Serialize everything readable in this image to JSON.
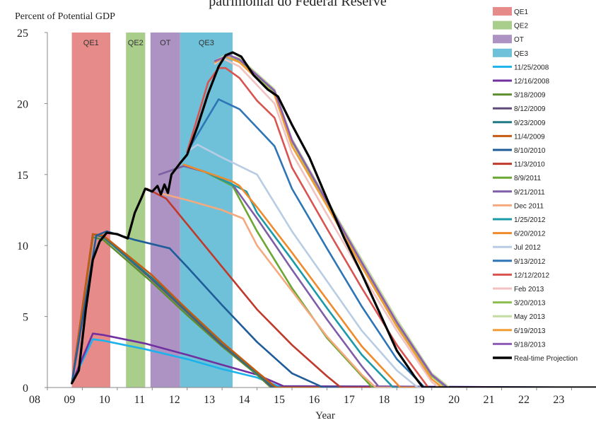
{
  "header": {
    "title": "patrimonial do Federal Reserve"
  },
  "chart_data": {
    "type": "line",
    "title": "patrimonial do Federal Reserve",
    "ylabel": "Percent of Potential GDP",
    "xlabel": "Year",
    "xlim": [
      2008,
      2023.7
    ],
    "ylim": [
      0,
      25
    ],
    "xticks": [
      2008,
      2009,
      2010,
      2011,
      2012,
      2013,
      2014,
      2015,
      2016,
      2017,
      2018,
      2019,
      2020,
      2021,
      2022,
      2023
    ],
    "xtick_labels": [
      "08",
      "09",
      "10",
      "11",
      "12",
      "13",
      "14",
      "15",
      "16",
      "17",
      "18",
      "19",
      "20",
      "21",
      "22",
      "23"
    ],
    "yticks": [
      0,
      5,
      10,
      15,
      20,
      25
    ],
    "ytick_labels": [
      "0",
      "5",
      "10",
      "15",
      "20",
      "25"
    ],
    "grid": false,
    "legend_position": "right",
    "bands": [
      {
        "name": "QE1",
        "x0": 2008.7,
        "x1": 2009.8,
        "color": "#e68a8a"
      },
      {
        "name": "QE2",
        "x0": 2010.25,
        "x1": 2010.8,
        "color": "#a9cd8a"
      },
      {
        "name": "OT",
        "x0": 2010.95,
        "x1": 2011.8,
        "color": "#ad93c4"
      },
      {
        "name": "QE3",
        "x0": 2011.8,
        "x1": 2013.3,
        "color": "#6ec1d8"
      }
    ],
    "series": [
      {
        "name": "11/25/2008",
        "color": "#1cb2ec",
        "points": [
          [
            2008.7,
            0.3
          ],
          [
            2009.3,
            3.4
          ],
          [
            2009.6,
            3.3
          ],
          [
            2010.8,
            2.7
          ],
          [
            2012,
            2.0
          ],
          [
            2013,
            1.3
          ],
          [
            2014,
            0.7
          ],
          [
            2014.6,
            0.1
          ],
          [
            2023.7,
            0
          ]
        ]
      },
      {
        "name": "12/16/2008",
        "color": "#7030a0",
        "points": [
          [
            2008.7,
            0.3
          ],
          [
            2009.3,
            3.8
          ],
          [
            2009.6,
            3.7
          ],
          [
            2010.8,
            3.1
          ],
          [
            2012,
            2.3
          ],
          [
            2013,
            1.6
          ],
          [
            2014,
            0.9
          ],
          [
            2014.75,
            0.1
          ],
          [
            2023.7,
            0
          ]
        ]
      },
      {
        "name": "3/18/2009",
        "color": "#5e8f2f",
        "points": [
          [
            2008.7,
            0.3
          ],
          [
            2009.3,
            10.6
          ],
          [
            2009.6,
            10.4
          ],
          [
            2011,
            7.4
          ],
          [
            2012,
            5.1
          ],
          [
            2013,
            2.9
          ],
          [
            2014,
            0.9
          ],
          [
            2014.4,
            0
          ],
          [
            2023.7,
            0
          ]
        ]
      },
      {
        "name": "8/12/2009",
        "color": "#604a7b",
        "points": [
          [
            2008.7,
            0.3
          ],
          [
            2009.3,
            10.8
          ],
          [
            2009.6,
            10.6
          ],
          [
            2011,
            7.6
          ],
          [
            2012,
            5.3
          ],
          [
            2013,
            3.0
          ],
          [
            2014,
            1.0
          ],
          [
            2014.45,
            0
          ],
          [
            2023.7,
            0
          ]
        ]
      },
      {
        "name": "9/23/2009",
        "color": "#1f7a86",
        "points": [
          [
            2008.7,
            0.3
          ],
          [
            2009.3,
            10.8
          ],
          [
            2009.6,
            10.6
          ],
          [
            2011,
            7.7
          ],
          [
            2012,
            5.4
          ],
          [
            2013,
            3.1
          ],
          [
            2014,
            1.0
          ],
          [
            2014.5,
            0
          ],
          [
            2023.7,
            0
          ]
        ]
      },
      {
        "name": "11/4/2009",
        "color": "#c55a11",
        "points": [
          [
            2008.7,
            0.3
          ],
          [
            2009.3,
            10.8
          ],
          [
            2009.6,
            10.7
          ],
          [
            2011,
            7.9
          ],
          [
            2012,
            5.5
          ],
          [
            2013,
            3.2
          ],
          [
            2014,
            1.1
          ],
          [
            2014.55,
            0
          ],
          [
            2023.7,
            0
          ]
        ]
      },
      {
        "name": "8/10/2010",
        "color": "#1f5d9a",
        "points": [
          [
            2008.7,
            0.3
          ],
          [
            2009.4,
            10.7
          ],
          [
            2009.7,
            11.0
          ],
          [
            2010.5,
            10.4
          ],
          [
            2011.5,
            9.8
          ],
          [
            2012,
            8.5
          ],
          [
            2013,
            5.8
          ],
          [
            2014,
            3.2
          ],
          [
            2015,
            1.0
          ],
          [
            2015.9,
            0
          ],
          [
            2023.7,
            0
          ]
        ]
      },
      {
        "name": "11/3/2010",
        "color": "#c0392b",
        "points": [
          [
            2010.85,
            14.0
          ],
          [
            2011.4,
            13.3
          ],
          [
            2012,
            11.5
          ],
          [
            2013,
            8.5
          ],
          [
            2014,
            5.5
          ],
          [
            2015,
            3.0
          ],
          [
            2016,
            0.8
          ],
          [
            2016.4,
            0
          ],
          [
            2023.7,
            0
          ]
        ]
      },
      {
        "name": "8/9/2011",
        "color": "#6aa832",
        "points": [
          [
            2011.2,
            15.0
          ],
          [
            2011.9,
            15.6
          ],
          [
            2012.5,
            15.2
          ],
          [
            2013.3,
            14.2
          ],
          [
            2014,
            11.0
          ],
          [
            2015,
            7.0
          ],
          [
            2016,
            3.5
          ],
          [
            2017,
            0.8
          ],
          [
            2017.3,
            0
          ],
          [
            2023.7,
            0
          ]
        ]
      },
      {
        "name": "9/21/2011",
        "color": "#7f5da8",
        "points": [
          [
            2011.2,
            15.0
          ],
          [
            2011.9,
            15.6
          ],
          [
            2012.5,
            15.2
          ],
          [
            2013.3,
            14.3
          ],
          [
            2014,
            11.9
          ],
          [
            2015,
            8.3
          ],
          [
            2016,
            4.8
          ],
          [
            2017,
            1.5
          ],
          [
            2017.5,
            0
          ],
          [
            2023.7,
            0
          ]
        ]
      },
      {
        "name": "Dec 2011",
        "color": "#f5a97f",
        "points": [
          [
            2011.2,
            13.7
          ],
          [
            2012,
            13.2
          ],
          [
            2013,
            12.5
          ],
          [
            2013.6,
            11.9
          ],
          [
            2014,
            10.0
          ],
          [
            2015,
            6.8
          ],
          [
            2016,
            3.6
          ],
          [
            2017,
            0.9
          ],
          [
            2017.4,
            0
          ],
          [
            2023.7,
            0
          ]
        ]
      },
      {
        "name": "1/25/2012",
        "color": "#1b9aa8",
        "points": [
          [
            2011.9,
            15.7
          ],
          [
            2012.5,
            15.2
          ],
          [
            2013.3,
            14.3
          ],
          [
            2013.7,
            13.8
          ],
          [
            2014,
            12.3
          ],
          [
            2015,
            9.0
          ],
          [
            2016,
            5.6
          ],
          [
            2017,
            2.3
          ],
          [
            2017.9,
            0
          ],
          [
            2023.7,
            0
          ]
        ]
      },
      {
        "name": "6/20/2012",
        "color": "#f08a2a",
        "points": [
          [
            2011.9,
            15.7
          ],
          [
            2012.5,
            15.2
          ],
          [
            2013.3,
            14.5
          ],
          [
            2013.5,
            14.2
          ],
          [
            2014,
            12.7
          ],
          [
            2015,
            9.5
          ],
          [
            2016,
            6.2
          ],
          [
            2017,
            2.9
          ],
          [
            2018.1,
            0
          ],
          [
            2023.7,
            0
          ]
        ]
      },
      {
        "name": "Jul 2012",
        "color": "#b8cce4",
        "points": [
          [
            2012,
            16.6
          ],
          [
            2012.3,
            17.1
          ],
          [
            2013,
            16.2
          ],
          [
            2014,
            15.0
          ],
          [
            2015,
            11.0
          ],
          [
            2016,
            7.5
          ],
          [
            2017,
            4.0
          ],
          [
            2018,
            1.2
          ],
          [
            2018.6,
            0
          ],
          [
            2023.7,
            0
          ]
        ]
      },
      {
        "name": "9/13/2012",
        "color": "#2e75b6",
        "points": [
          [
            2012,
            16.6
          ],
          [
            2012.9,
            20.3
          ],
          [
            2013.5,
            19.6
          ],
          [
            2014,
            18.3
          ],
          [
            2014.5,
            17.0
          ],
          [
            2015,
            14.0
          ],
          [
            2016,
            9.8
          ],
          [
            2017,
            5.7
          ],
          [
            2018,
            2.0
          ],
          [
            2018.8,
            0
          ],
          [
            2023.7,
            0
          ]
        ]
      },
      {
        "name": "12/12/2012",
        "color": "#d9534f",
        "points": [
          [
            2012,
            16.6
          ],
          [
            2012.6,
            21.5
          ],
          [
            2012.9,
            22.5
          ],
          [
            2013.1,
            22.5
          ],
          [
            2013.5,
            21.8
          ],
          [
            2014,
            20.2
          ],
          [
            2014.5,
            19.0
          ],
          [
            2015,
            15.5
          ],
          [
            2016,
            11.2
          ],
          [
            2017,
            7.0
          ],
          [
            2018,
            3.0
          ],
          [
            2018.9,
            0
          ],
          [
            2023.7,
            0
          ]
        ]
      },
      {
        "name": "Feb 2013",
        "color": "#f1c2c2",
        "points": [
          [
            2012.8,
            22.8
          ],
          [
            2013,
            23.2
          ],
          [
            2013.5,
            22.6
          ],
          [
            2014.5,
            20.0
          ],
          [
            2015,
            16.5
          ],
          [
            2016,
            12.2
          ],
          [
            2017,
            8.0
          ],
          [
            2018,
            4.0
          ],
          [
            2019,
            0.4
          ],
          [
            2019.2,
            0
          ],
          [
            2023.7,
            0
          ]
        ]
      },
      {
        "name": "3/20/2013",
        "color": "#8bbd4f",
        "points": [
          [
            2012.8,
            23.0
          ],
          [
            2013.1,
            23.3
          ],
          [
            2013.5,
            23.0
          ],
          [
            2014.5,
            20.8
          ],
          [
            2015,
            17.3
          ],
          [
            2016,
            13.0
          ],
          [
            2017,
            8.7
          ],
          [
            2018,
            4.5
          ],
          [
            2019,
            0.8
          ],
          [
            2019.4,
            0
          ],
          [
            2023.7,
            0
          ]
        ]
      },
      {
        "name": "May 2013",
        "color": "#c3dca0",
        "points": [
          [
            2012.8,
            23.0
          ],
          [
            2013.1,
            23.4
          ],
          [
            2013.5,
            23.2
          ],
          [
            2014.5,
            21.0
          ],
          [
            2015,
            17.5
          ],
          [
            2016,
            13.2
          ],
          [
            2017,
            9.0
          ],
          [
            2018,
            4.8
          ],
          [
            2019,
            1.0
          ],
          [
            2019.5,
            0
          ],
          [
            2023.7,
            0
          ]
        ]
      },
      {
        "name": "6/19/2013",
        "color": "#f29b34",
        "points": [
          [
            2012.8,
            22.9
          ],
          [
            2013.1,
            23.3
          ],
          [
            2013.5,
            22.9
          ],
          [
            2014.5,
            20.6
          ],
          [
            2015,
            17.0
          ],
          [
            2016,
            12.8
          ],
          [
            2017,
            8.5
          ],
          [
            2018,
            4.3
          ],
          [
            2019,
            0.6
          ],
          [
            2019.3,
            0
          ],
          [
            2023.7,
            0
          ]
        ]
      },
      {
        "name": "9/18/2013",
        "color": "#8e5bb5",
        "points": [
          [
            2012.8,
            23.0
          ],
          [
            2013.2,
            23.4
          ],
          [
            2013.5,
            23.1
          ],
          [
            2014.5,
            20.9
          ],
          [
            2015,
            17.4
          ],
          [
            2016,
            13.1
          ],
          [
            2017,
            8.8
          ],
          [
            2018,
            4.6
          ],
          [
            2019,
            0.9
          ],
          [
            2019.45,
            0
          ],
          [
            2023.7,
            0
          ]
        ]
      },
      {
        "name": "Real-time Projection",
        "color": "#000000",
        "points": [
          [
            2008.7,
            0.3
          ],
          [
            2008.9,
            1.2
          ],
          [
            2009.1,
            5.5
          ],
          [
            2009.3,
            9.0
          ],
          [
            2009.5,
            10.3
          ],
          [
            2009.7,
            10.9
          ],
          [
            2010,
            10.8
          ],
          [
            2010.3,
            10.5
          ],
          [
            2010.5,
            12.3
          ],
          [
            2010.7,
            13.4
          ],
          [
            2010.8,
            14.0
          ],
          [
            2011,
            13.8
          ],
          [
            2011.15,
            14.2
          ],
          [
            2011.25,
            13.6
          ],
          [
            2011.35,
            14.3
          ],
          [
            2011.45,
            13.7
          ],
          [
            2011.55,
            15.0
          ],
          [
            2011.8,
            15.8
          ],
          [
            2012,
            16.4
          ],
          [
            2012.3,
            18.4
          ],
          [
            2012.6,
            20.7
          ],
          [
            2012.9,
            22.6
          ],
          [
            2013.1,
            23.4
          ],
          [
            2013.3,
            23.6
          ],
          [
            2013.55,
            23.3
          ],
          [
            2013.9,
            22.0
          ],
          [
            2014.3,
            21.0
          ],
          [
            2014.6,
            20.5
          ],
          [
            2015,
            18.5
          ],
          [
            2015.5,
            16.2
          ],
          [
            2016,
            13.3
          ],
          [
            2016.5,
            10.5
          ],
          [
            2017,
            8.0
          ],
          [
            2017.5,
            5.3
          ],
          [
            2018,
            2.6
          ],
          [
            2018.5,
            0.8
          ],
          [
            2018.75,
            0
          ],
          [
            2023.7,
            0
          ]
        ]
      }
    ]
  }
}
